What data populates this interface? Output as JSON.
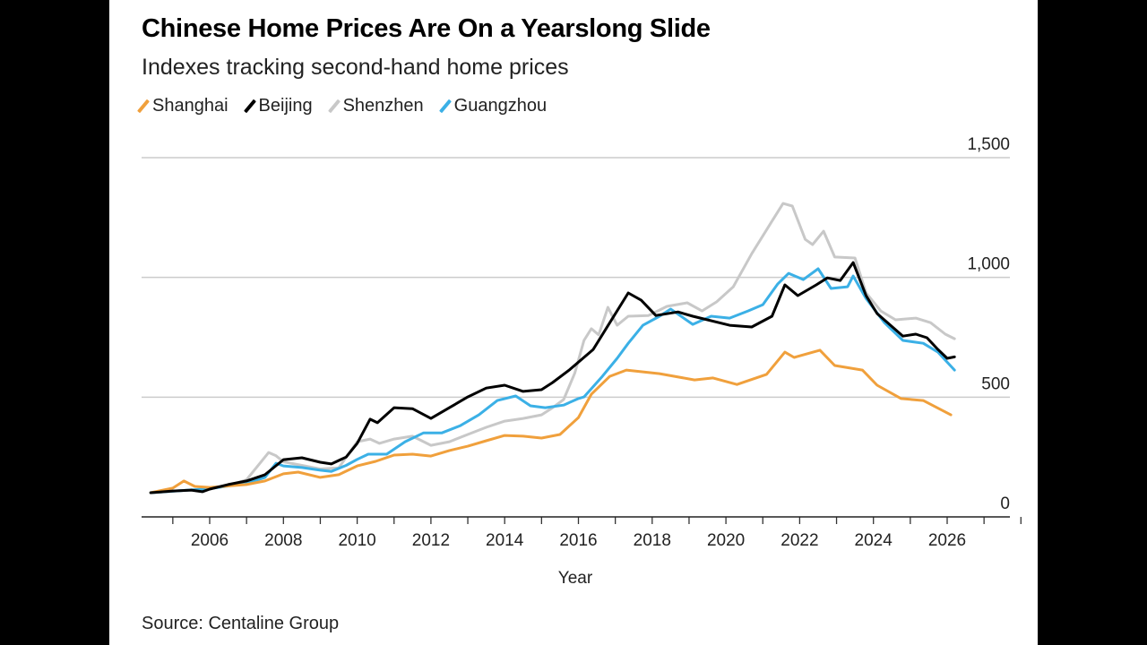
{
  "chart_data": {
    "type": "line",
    "title": "Chinese Home Prices Are On a Yearslong Slide",
    "subtitle": "Indexes tracking second-hand home prices",
    "xlabel": "Year",
    "ylabel": "",
    "source": "Source: Centaline Group",
    "xlim": [
      2004.15,
      2027.7
    ],
    "ylim": [
      0,
      1500
    ],
    "x_ticks": [
      2006,
      2008,
      2010,
      2012,
      2014,
      2016,
      2018,
      2020,
      2022,
      2024,
      2026
    ],
    "x_tick_labels": [
      "2006",
      "2008",
      "2010",
      "2012",
      "2014",
      "2016",
      "2018",
      "2020",
      "2022",
      "2024",
      "2026"
    ],
    "y_ticks": [
      0,
      500,
      1000,
      1500
    ],
    "y_tick_labels": [
      "0",
      "500",
      "1,000",
      "1,500"
    ],
    "grid": true,
    "legend_position": "top-left",
    "series": [
      {
        "name": "Shanghai",
        "color": "#f0a03c",
        "points": [
          [
            2004.4,
            101
          ],
          [
            2005,
            120
          ],
          [
            2005.3,
            150
          ],
          [
            2005.6,
            127
          ],
          [
            2006,
            123
          ],
          [
            2007,
            135
          ],
          [
            2007.5,
            150
          ],
          [
            2008,
            180
          ],
          [
            2008.4,
            187
          ],
          [
            2009,
            165
          ],
          [
            2009.5,
            176
          ],
          [
            2010,
            213
          ],
          [
            2010.5,
            232
          ],
          [
            2011,
            258
          ],
          [
            2011.5,
            262
          ],
          [
            2012,
            254
          ],
          [
            2012.5,
            277
          ],
          [
            2013,
            295
          ],
          [
            2013.5,
            318
          ],
          [
            2014,
            340
          ],
          [
            2014.5,
            337
          ],
          [
            2015,
            329
          ],
          [
            2015.5,
            344
          ],
          [
            2016,
            415
          ],
          [
            2016.35,
            512
          ],
          [
            2016.85,
            587
          ],
          [
            2017.3,
            613
          ],
          [
            2018.2,
            598
          ],
          [
            2019.15,
            572
          ],
          [
            2019.65,
            580
          ],
          [
            2020.3,
            553
          ],
          [
            2021.1,
            595
          ],
          [
            2021.6,
            688
          ],
          [
            2021.85,
            666
          ],
          [
            2022.55,
            696
          ],
          [
            2022.95,
            632
          ],
          [
            2023.7,
            613
          ],
          [
            2024.1,
            550
          ],
          [
            2024.75,
            494
          ],
          [
            2025.35,
            486
          ],
          [
            2026.1,
            426
          ]
        ]
      },
      {
        "name": "Beijing",
        "color": "#000000",
        "points": [
          [
            2004.4,
            101
          ],
          [
            2005,
            108
          ],
          [
            2005.5,
            112
          ],
          [
            2005.8,
            105
          ],
          [
            2006,
            116
          ],
          [
            2006.5,
            135
          ],
          [
            2007,
            150
          ],
          [
            2007.5,
            176
          ],
          [
            2008,
            239
          ],
          [
            2008.5,
            247
          ],
          [
            2009,
            228
          ],
          [
            2009.3,
            221
          ],
          [
            2009.7,
            250
          ],
          [
            2010,
            307
          ],
          [
            2010.35,
            408
          ],
          [
            2010.55,
            393
          ],
          [
            2011,
            456
          ],
          [
            2011.5,
            452
          ],
          [
            2012,
            411
          ],
          [
            2012.5,
            456
          ],
          [
            2013,
            501
          ],
          [
            2013.5,
            538
          ],
          [
            2014,
            550
          ],
          [
            2014.5,
            524
          ],
          [
            2015,
            531
          ],
          [
            2015.3,
            561
          ],
          [
            2015.75,
            613
          ],
          [
            2016.4,
            699
          ],
          [
            2016.85,
            811
          ],
          [
            2017.35,
            935
          ],
          [
            2017.7,
            905
          ],
          [
            2018.1,
            841
          ],
          [
            2018.7,
            856
          ],
          [
            2019.1,
            838
          ],
          [
            2020.1,
            800
          ],
          [
            2020.7,
            793
          ],
          [
            2021.25,
            838
          ],
          [
            2021.6,
            969
          ],
          [
            2021.95,
            924
          ],
          [
            2022.45,
            969
          ],
          [
            2022.75,
            998
          ],
          [
            2023.1,
            987
          ],
          [
            2023.45,
            1062
          ],
          [
            2023.8,
            924
          ],
          [
            2024.1,
            849
          ],
          [
            2024.8,
            755
          ],
          [
            2025.15,
            763
          ],
          [
            2025.45,
            748
          ],
          [
            2025.75,
            699
          ],
          [
            2026.0,
            662
          ],
          [
            2026.2,
            668
          ]
        ]
      },
      {
        "name": "Shenzhen",
        "color": "#c8c8c8",
        "points": [
          [
            2004.4,
            101
          ],
          [
            2006,
            118
          ],
          [
            2006.5,
            130
          ],
          [
            2007,
            155
          ],
          [
            2007.6,
            269
          ],
          [
            2007.8,
            255
          ],
          [
            2008,
            230
          ],
          [
            2008.5,
            215
          ],
          [
            2009,
            200
          ],
          [
            2009.5,
            205
          ],
          [
            2010,
            314
          ],
          [
            2010.35,
            325
          ],
          [
            2010.6,
            307
          ],
          [
            2011,
            325
          ],
          [
            2011.5,
            337
          ],
          [
            2012,
            299
          ],
          [
            2012.5,
            314
          ],
          [
            2013,
            344
          ],
          [
            2013.5,
            374
          ],
          [
            2014,
            400
          ],
          [
            2014.5,
            411
          ],
          [
            2015,
            426
          ],
          [
            2015.3,
            456
          ],
          [
            2015.6,
            490
          ],
          [
            2015.9,
            600
          ],
          [
            2016.15,
            737
          ],
          [
            2016.35,
            786
          ],
          [
            2016.55,
            760
          ],
          [
            2016.8,
            875
          ],
          [
            2017.05,
            800
          ],
          [
            2017.35,
            838
          ],
          [
            2017.9,
            841
          ],
          [
            2018.4,
            879
          ],
          [
            2018.95,
            894
          ],
          [
            2019.35,
            860
          ],
          [
            2019.75,
            898
          ],
          [
            2020.2,
            961
          ],
          [
            2020.7,
            1099
          ],
          [
            2021.2,
            1223
          ],
          [
            2021.55,
            1309
          ],
          [
            2021.8,
            1298
          ],
          [
            2022.15,
            1159
          ],
          [
            2022.35,
            1137
          ],
          [
            2022.65,
            1193
          ],
          [
            2022.95,
            1085
          ],
          [
            2023.5,
            1081
          ],
          [
            2023.8,
            935
          ],
          [
            2024.2,
            860
          ],
          [
            2024.6,
            823
          ],
          [
            2025.15,
            830
          ],
          [
            2025.55,
            811
          ],
          [
            2025.95,
            763
          ],
          [
            2026.2,
            744
          ]
        ]
      },
      {
        "name": "Guangzhou",
        "color": "#3bb0e6",
        "points": [
          [
            2004.4,
            101
          ],
          [
            2006,
            118
          ],
          [
            2007,
            140
          ],
          [
            2007.5,
            165
          ],
          [
            2007.8,
            224
          ],
          [
            2008,
            213
          ],
          [
            2008.5,
            206
          ],
          [
            2009,
            195
          ],
          [
            2009.3,
            190
          ],
          [
            2009.7,
            215
          ],
          [
            2010,
            240
          ],
          [
            2010.3,
            262
          ],
          [
            2010.8,
            262
          ],
          [
            2011.3,
            314
          ],
          [
            2011.8,
            351
          ],
          [
            2012.3,
            351
          ],
          [
            2012.8,
            381
          ],
          [
            2013.3,
            426
          ],
          [
            2013.8,
            486
          ],
          [
            2014.3,
            505
          ],
          [
            2014.7,
            464
          ],
          [
            2015.1,
            456
          ],
          [
            2015.6,
            467
          ],
          [
            2016,
            494
          ],
          [
            2016.15,
            501
          ],
          [
            2016.65,
            587
          ],
          [
            2017.05,
            662
          ],
          [
            2017.35,
            725
          ],
          [
            2017.75,
            800
          ],
          [
            2018.2,
            838
          ],
          [
            2018.5,
            868
          ],
          [
            2019.1,
            804
          ],
          [
            2019.6,
            838
          ],
          [
            2020.1,
            830
          ],
          [
            2020.6,
            860
          ],
          [
            2021.0,
            886
          ],
          [
            2021.4,
            972
          ],
          [
            2021.7,
            1017
          ],
          [
            2022.1,
            991
          ],
          [
            2022.5,
            1036
          ],
          [
            2022.85,
            954
          ],
          [
            2023.3,
            961
          ],
          [
            2023.45,
            1006
          ],
          [
            2023.8,
            912
          ],
          [
            2024.3,
            811
          ],
          [
            2024.8,
            737
          ],
          [
            2025.35,
            725
          ],
          [
            2025.75,
            688
          ],
          [
            2026.2,
            613
          ]
        ]
      }
    ]
  }
}
